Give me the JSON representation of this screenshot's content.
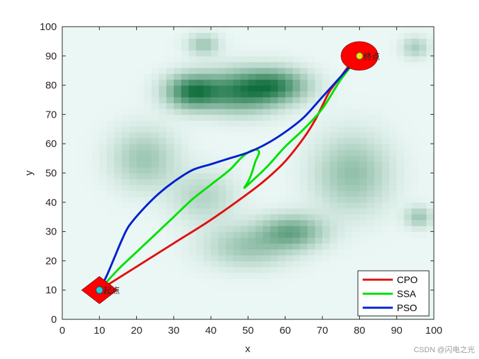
{
  "chart_data": {
    "type": "line",
    "title": "",
    "xlabel": "x",
    "ylabel": "y",
    "xlim": [
      0,
      100
    ],
    "ylim": [
      0,
      100
    ],
    "xticks": [
      0,
      10,
      20,
      30,
      40,
      50,
      60,
      70,
      80,
      90,
      100
    ],
    "yticks": [
      0,
      10,
      20,
      30,
      40,
      50,
      60,
      70,
      80,
      90,
      100
    ],
    "grid": false,
    "legend_position": "bottom-right",
    "background": "green threat-density heatmap",
    "start": {
      "x": 10,
      "y": 10,
      "label": "起点",
      "color": "#ff0000"
    },
    "goal": {
      "x": 80,
      "y": 90,
      "label": "终点",
      "color": "#ff0000"
    },
    "threat_blobs": [
      {
        "x": 35,
        "y": 78,
        "sx": 5,
        "sy": 4,
        "w": 0.85
      },
      {
        "x": 48,
        "y": 78,
        "sx": 7,
        "sy": 5,
        "w": 0.75
      },
      {
        "x": 58,
        "y": 80,
        "sx": 6,
        "sy": 4,
        "w": 0.65
      },
      {
        "x": 22,
        "y": 55,
        "sx": 6,
        "sy": 7,
        "w": 0.35
      },
      {
        "x": 78,
        "y": 50,
        "sx": 7,
        "sy": 9,
        "w": 0.4
      },
      {
        "x": 62,
        "y": 30,
        "sx": 6,
        "sy": 4,
        "w": 0.55
      },
      {
        "x": 50,
        "y": 25,
        "sx": 8,
        "sy": 5,
        "w": 0.35
      },
      {
        "x": 38,
        "y": 42,
        "sx": 6,
        "sy": 6,
        "w": 0.25
      },
      {
        "x": 38,
        "y": 94,
        "sx": 3,
        "sy": 2.5,
        "w": 0.35
      },
      {
        "x": 95,
        "y": 93,
        "sx": 2.5,
        "sy": 2.5,
        "w": 0.3
      },
      {
        "x": 96,
        "y": 35,
        "sx": 2.5,
        "sy": 2.5,
        "w": 0.35
      }
    ],
    "series": [
      {
        "name": "CPO",
        "color": "#e01010",
        "x": [
          10,
          20,
          30,
          40,
          50,
          55,
          60,
          65,
          68,
          70,
          72,
          75,
          78,
          80
        ],
        "y": [
          10,
          18,
          26,
          34,
          43,
          48,
          54,
          62,
          68,
          73,
          78,
          83,
          88,
          90
        ]
      },
      {
        "name": "SSA",
        "color": "#00e000",
        "x": [
          10,
          15,
          20,
          25,
          30,
          35,
          40,
          45,
          48,
          50,
          52,
          53,
          52,
          51,
          50,
          49,
          50,
          55,
          60,
          65,
          70,
          75,
          80
        ],
        "y": [
          10,
          17,
          23,
          29,
          35,
          41,
          46,
          51,
          55,
          57,
          58,
          57,
          54,
          50,
          47,
          45,
          46,
          52,
          59,
          65,
          72,
          82,
          90
        ]
      },
      {
        "name": "PSO",
        "color": "#0020d0",
        "x": [
          10,
          12,
          14,
          16,
          18,
          22,
          26,
          30,
          35,
          40,
          45,
          50,
          55,
          60,
          65,
          70,
          75,
          80
        ],
        "y": [
          10,
          15,
          21,
          27,
          32,
          38,
          43,
          47,
          51,
          53,
          55,
          57,
          60,
          64,
          69,
          76,
          83,
          90
        ]
      }
    ]
  },
  "watermark": "CSDN @闪电之光"
}
